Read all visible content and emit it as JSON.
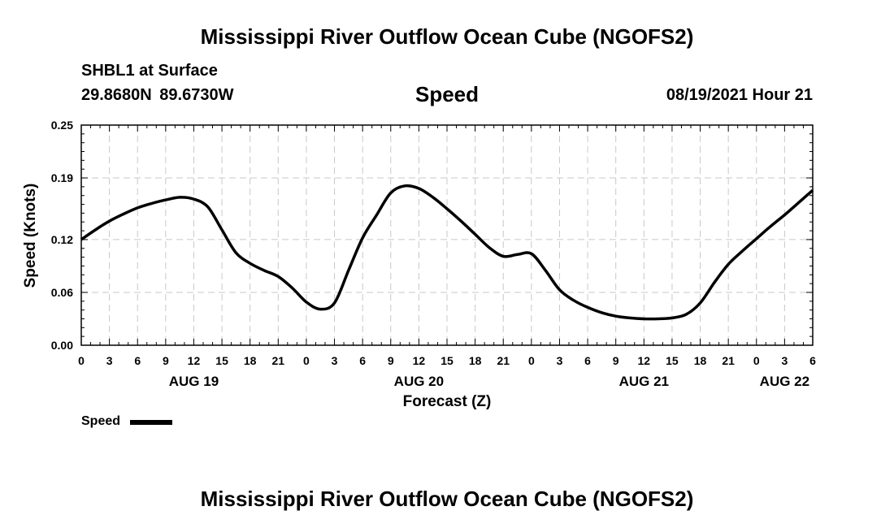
{
  "header": {
    "title": "Mississippi River Outflow Ocean Cube (NGOFS2)",
    "station": "SHBL1 at Surface",
    "coordinates": "29.8680N 89.6730W",
    "variable": "Speed",
    "datetime": "08/19/2021 Hour 21"
  },
  "footer": {
    "title": "Mississippi River Outflow Ocean Cube (NGOFS2)"
  },
  "legend": {
    "label": "Speed"
  },
  "chart_data": {
    "type": "line",
    "title": "Speed",
    "xlabel": "Forecast (Z)",
    "ylabel": "Speed (Knots)",
    "grid": true,
    "x_unit": "hours since 08/19/2021 00Z",
    "xlim": [
      0,
      78
    ],
    "ylim": [
      0,
      0.25
    ],
    "x_tick_step": 3,
    "x_tick_labels": [
      "0",
      "3",
      "6",
      "9",
      "12",
      "15",
      "18",
      "21",
      "0",
      "3",
      "6",
      "9",
      "12",
      "15",
      "18",
      "21",
      "0",
      "3",
      "6",
      "9",
      "12",
      "15",
      "18",
      "21",
      "0",
      "3",
      "6"
    ],
    "y_ticks": [
      0.0,
      0.06,
      0.12,
      0.19,
      0.25
    ],
    "y_tick_labels": [
      "0.00",
      "0.06",
      "0.12",
      "0.19",
      "0.25"
    ],
    "day_labels": [
      {
        "label": "AUG 19",
        "x": 12
      },
      {
        "label": "AUG 20",
        "x": 36
      },
      {
        "label": "AUG 21",
        "x": 60
      },
      {
        "label": "AUG 22",
        "x": 75
      }
    ],
    "series": [
      {
        "name": "Speed",
        "color": "#000000",
        "x": [
          0,
          1.5,
          3,
          4.5,
          6,
          7.5,
          9,
          10.5,
          12,
          13.5,
          15,
          16.5,
          18,
          19.5,
          21,
          22.5,
          24,
          25.5,
          27,
          28.5,
          30,
          31.5,
          33,
          34.5,
          36,
          37.5,
          39,
          40.5,
          42,
          43.5,
          45,
          46.5,
          48,
          49.5,
          51,
          52.5,
          54,
          55.5,
          57,
          58.5,
          60,
          61.5,
          63,
          64.5,
          66,
          67.5,
          69,
          70.5,
          72,
          73.5,
          75,
          76.5,
          78
        ],
        "y": [
          0.12,
          0.131,
          0.141,
          0.149,
          0.156,
          0.161,
          0.165,
          0.168,
          0.166,
          0.157,
          0.131,
          0.105,
          0.093,
          0.085,
          0.078,
          0.065,
          0.049,
          0.041,
          0.048,
          0.085,
          0.122,
          0.148,
          0.173,
          0.181,
          0.178,
          0.168,
          0.155,
          0.141,
          0.126,
          0.111,
          0.101,
          0.103,
          0.104,
          0.085,
          0.063,
          0.051,
          0.043,
          0.037,
          0.033,
          0.031,
          0.03,
          0.03,
          0.031,
          0.035,
          0.048,
          0.071,
          0.092,
          0.107,
          0.121,
          0.135,
          0.148,
          0.162,
          0.176
        ]
      }
    ]
  }
}
